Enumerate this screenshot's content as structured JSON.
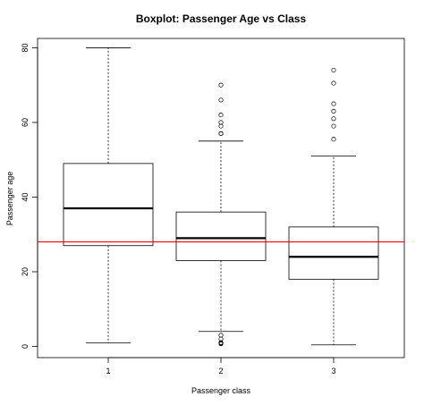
{
  "chart_data": {
    "type": "boxplot",
    "title": "Boxplot: Passenger Age vs Class",
    "xlabel": "Passenger class",
    "ylabel": "Passenger age",
    "categories": [
      "1",
      "2",
      "3"
    ],
    "y_ticks": [
      "0",
      "20",
      "40",
      "60",
      "80"
    ],
    "ylim": [
      -3,
      82.5
    ],
    "boxes": [
      {
        "category": "1",
        "whisker_low": 0.92,
        "q1": 27,
        "median": 37,
        "q3": 49,
        "whisker_high": 80,
        "outliers": []
      },
      {
        "category": "2",
        "whisker_low": 4,
        "q1": 23,
        "median": 29,
        "q3": 36,
        "whisker_high": 55,
        "outliers": [
          0.67,
          0.83,
          1,
          1,
          2,
          3,
          57,
          57,
          59,
          60,
          62,
          66,
          70
        ]
      },
      {
        "category": "3",
        "whisker_low": 0.42,
        "q1": 18,
        "median": 24,
        "q3": 32,
        "whisker_high": 51,
        "outliers": [
          55.5,
          59,
          61,
          63,
          65,
          70.5,
          74
        ]
      }
    ],
    "reference_line": {
      "y": 28,
      "color": "#ff0000"
    },
    "grid": false,
    "legend": "none"
  }
}
